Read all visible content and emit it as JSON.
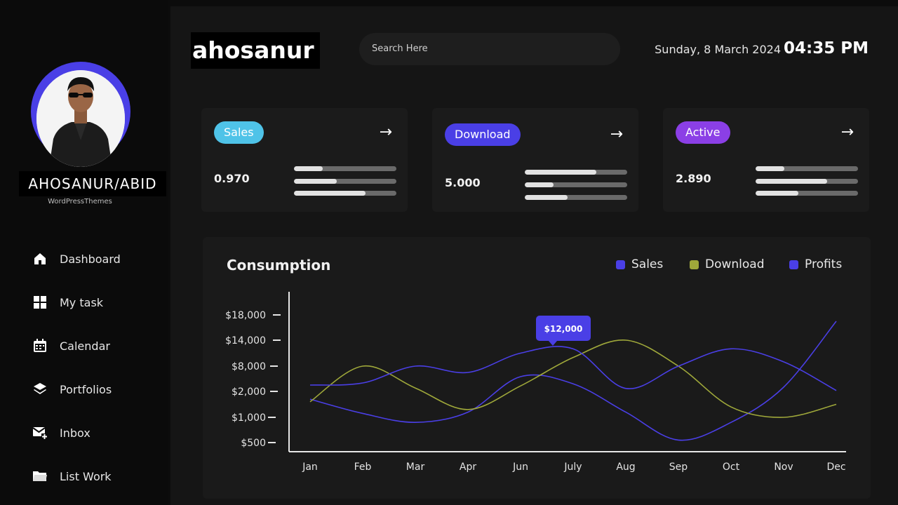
{
  "profile": {
    "name": "AHOSANUR/ABID",
    "subtitle": "WordPressThemes"
  },
  "nav": [
    {
      "label": "Dashboard",
      "icon": "home-icon"
    },
    {
      "label": "My task",
      "icon": "grid-icon"
    },
    {
      "label": "Calendar",
      "icon": "calendar-icon"
    },
    {
      "label": "Portfolios",
      "icon": "layers-icon"
    },
    {
      "label": "Inbox",
      "icon": "mail-plus-icon"
    },
    {
      "label": "List Work",
      "icon": "folder-icon"
    }
  ],
  "header": {
    "brand": "ahosanur",
    "search_placeholder": "Search Here",
    "date": "Sunday, 8 March 2024",
    "time": "04:35 PM"
  },
  "cards": [
    {
      "label": "Sales",
      "value": "0.970",
      "color": "#4fc3e8",
      "bars": [
        0.28,
        0.42,
        0.7
      ]
    },
    {
      "label": "Download",
      "value": "5.000",
      "color": "#4a3fe6",
      "bars": [
        0.7,
        0.28,
        0.42
      ]
    },
    {
      "label": "Active",
      "value": "2.890",
      "color": "#8b3fe6",
      "bars": [
        0.28,
        0.7,
        0.42
      ]
    }
  ],
  "chart": {
    "title": "Consumption",
    "tooltip": "$12,000",
    "legend": [
      {
        "label": "Sales",
        "color": "#4a3fe6"
      },
      {
        "label": "Download",
        "color": "#9fa83a"
      },
      {
        "label": "Profits",
        "color": "#4a3fe6"
      }
    ]
  },
  "chart_data": {
    "type": "line",
    "title": "Consumption",
    "categories": [
      "Jan",
      "Feb",
      "Mar",
      "Apr",
      "Jun",
      "July",
      "Aug",
      "Sep",
      "Oct",
      "Nov",
      "Dec"
    ],
    "y_ticks": [
      "$18,000",
      "$14,000",
      "$8,000",
      "$2,000",
      "$1,000",
      "$500"
    ],
    "series": [
      {
        "name": "Sales",
        "color": "#4a3fe6",
        "values": [
          1700,
          1150,
          900,
          1200,
          5500,
          3800,
          1200,
          550,
          900,
          3000,
          17000
        ]
      },
      {
        "name": "Download",
        "color": "#9fa83a",
        "values": [
          1600,
          8000,
          2800,
          1300,
          3300,
          10000,
          14000,
          8000,
          1400,
          1000,
          1500
        ]
      },
      {
        "name": "Profits",
        "color": "#4a3fe6",
        "values": [
          3500,
          4000,
          8000,
          6500,
          11000,
          12000,
          2700,
          8000,
          12000,
          9000,
          2200
        ]
      }
    ],
    "annotation": "$12,000",
    "grid": false,
    "legend_position": "top-right"
  }
}
